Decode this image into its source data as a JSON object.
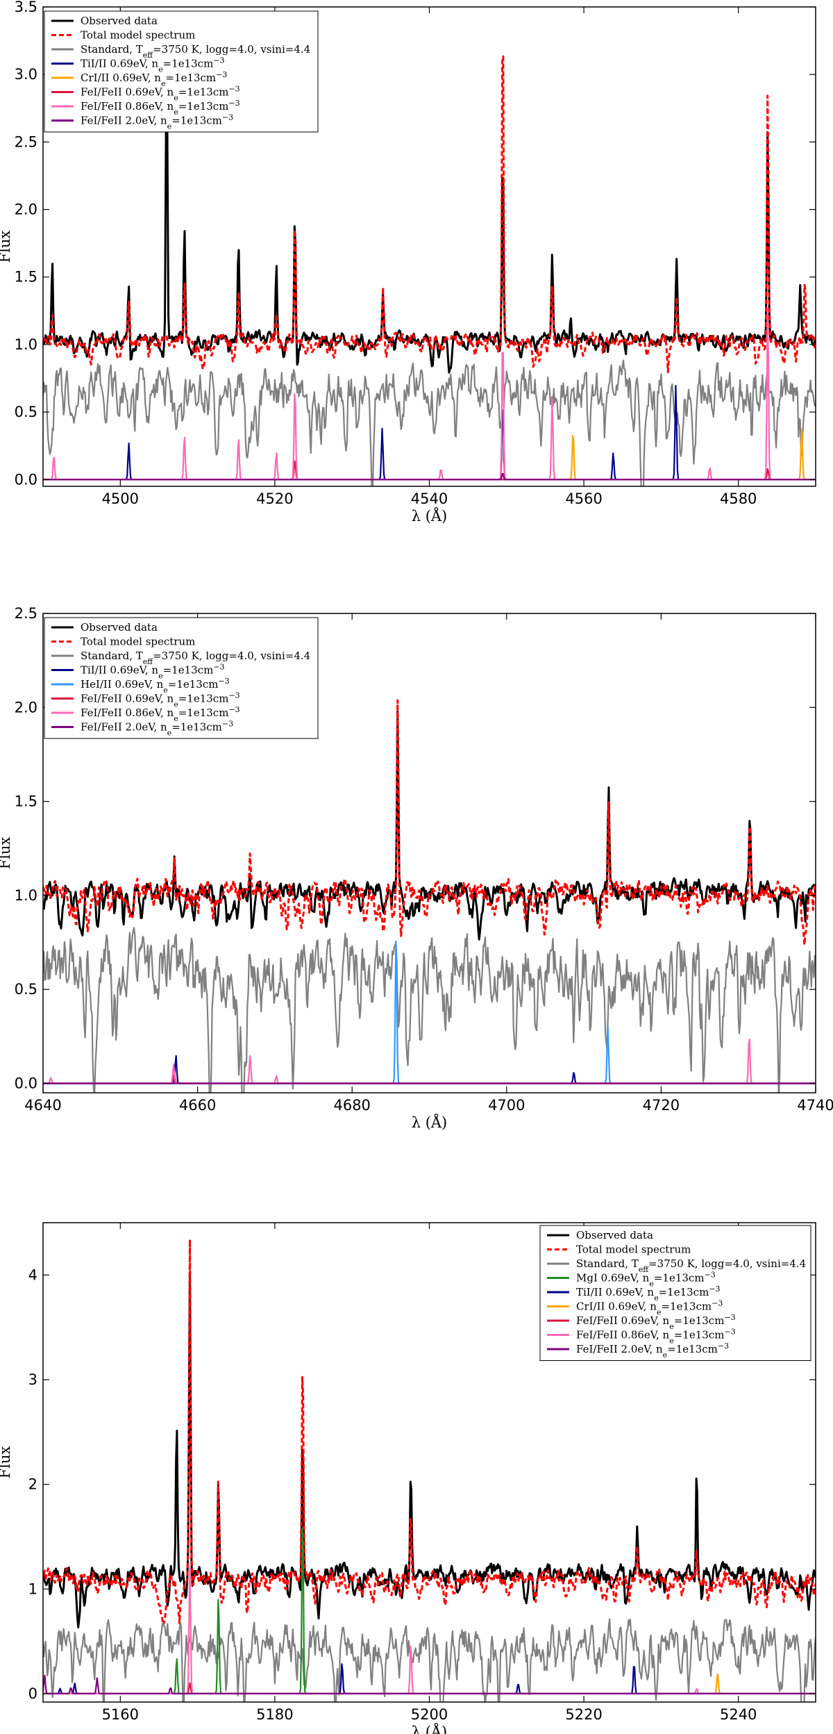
{
  "chart_data": [
    {
      "type": "line",
      "xlabel": "λ (Å)",
      "ylabel": "Flux",
      "xlim": [
        4490,
        4590
      ],
      "ylim": [
        -0.05,
        3.5
      ],
      "xticks": [
        4500,
        4520,
        4540,
        4560,
        4580
      ],
      "yticks": [
        0.0,
        0.5,
        1.0,
        1.5,
        2.0,
        2.5,
        3.0,
        3.5
      ],
      "ytick_format": "1",
      "legend_position": "top-left",
      "series": [
        {
          "name": "Observed data",
          "color": "#000000",
          "style": "solid",
          "baseline": 1.05,
          "noise": 0.05,
          "peaks": [
            [
              4491.2,
              0.6
            ],
            [
              4501.1,
              0.5
            ],
            [
              4506.0,
              2.4
            ],
            [
              4508.3,
              0.9
            ],
            [
              4515.3,
              0.7
            ],
            [
              4520.2,
              0.6
            ],
            [
              4522.6,
              0.95
            ],
            [
              4534.0,
              0.45
            ],
            [
              4549.5,
              1.35
            ],
            [
              4555.9,
              0.6
            ],
            [
              4558.3,
              0.25
            ],
            [
              4572.0,
              0.55
            ],
            [
              4583.8,
              1.55
            ],
            [
              4588.0,
              0.35
            ]
          ]
        },
        {
          "name": "Total model spectrum",
          "color": "#ff0000",
          "style": "dashed",
          "baseline": 1.03,
          "noise": 0.05,
          "peaks": [
            [
              4491.2,
              0.2
            ],
            [
              4501.1,
              0.3
            ],
            [
              4508.3,
              0.45
            ],
            [
              4515.3,
              0.4
            ],
            [
              4520.2,
              0.25
            ],
            [
              4522.6,
              0.9
            ],
            [
              4534.0,
              0.45
            ],
            [
              4549.5,
              2.5
            ],
            [
              4555.9,
              0.4
            ],
            [
              4572.0,
              0.35
            ],
            [
              4583.8,
              1.85
            ],
            [
              4588.6,
              0.45
            ]
          ]
        },
        {
          "name": "Standard, Teff=3750 K, logg=4.0, vsini=4.4",
          "color": "#808080",
          "style": "solid",
          "baseline": 0.68,
          "noise": 0.17,
          "peaks": []
        },
        {
          "name": "TiI/II 0.69eV, ne=1e13cm⁻³",
          "color": "#00008b",
          "style": "solid",
          "baseline": 0,
          "peaks": [
            [
              4501.1,
              0.27
            ],
            [
              4533.9,
              0.38
            ],
            [
              4549.5,
              0.6
            ],
            [
              4563.8,
              0.2
            ],
            [
              4571.9,
              0.7
            ]
          ]
        },
        {
          "name": "CrI/II 0.69eV, ne=1e13cm⁻³",
          "color": "#ffa500",
          "style": "solid",
          "baseline": 0,
          "peaks": [
            [
              4558.6,
              0.36
            ],
            [
              4588.2,
              0.38
            ]
          ]
        },
        {
          "name": "FeI/FeII 0.69eV, ne=1e13cm⁻³",
          "color": "#dc143c",
          "style": "solid",
          "baseline": 0,
          "peaks": [
            [
              4522.6,
              0.15
            ],
            [
              4583.8,
              0.08
            ]
          ]
        },
        {
          "name": "FeI/FeII 0.86eV, ne=1e13cm⁻³",
          "color": "#ff69b4",
          "style": "solid",
          "baseline": 0,
          "peaks": [
            [
              4491.4,
              0.18
            ],
            [
              4508.3,
              0.33
            ],
            [
              4515.3,
              0.31
            ],
            [
              4520.2,
              0.2
            ],
            [
              4522.6,
              0.7
            ],
            [
              4541.5,
              0.08
            ],
            [
              4549.5,
              1.1
            ],
            [
              4555.9,
              0.6
            ],
            [
              4576.3,
              0.09
            ],
            [
              4583.8,
              1.3
            ]
          ]
        },
        {
          "name": "FeI/FeII 2.0eV, ne=1e13cm⁻³",
          "color": "#800080",
          "style": "solid",
          "baseline": 0,
          "peaks": [
            [
              4549.5,
              0.05
            ]
          ]
        }
      ],
      "legend": [
        {
          "label": "Observed data",
          "color": "#000000",
          "style": "solid"
        },
        {
          "label": "Total model spectrum",
          "color": "#ff0000",
          "style": "dashed"
        },
        {
          "label": "Standard, T",
          "sub": "eff",
          "tail": "=3750 K, logg=4.0, vsini=4.4",
          "color": "#808080",
          "style": "solid"
        },
        {
          "label": "TiI/II 0.69eV, n",
          "sub": "e",
          "tail": "=1e13cm",
          "sup": "−3",
          "color": "#00008b",
          "style": "solid"
        },
        {
          "label": "CrI/II 0.69eV, n",
          "sub": "e",
          "tail": "=1e13cm",
          "sup": "−3",
          "color": "#ffa500",
          "style": "solid"
        },
        {
          "label": "FeI/FeII 0.69eV, n",
          "sub": "e",
          "tail": "=1e13cm",
          "sup": "−3",
          "color": "#dc143c",
          "style": "solid"
        },
        {
          "label": "FeI/FeII 0.86eV, n",
          "sub": "e",
          "tail": "=1e13cm",
          "sup": "−3",
          "color": "#ff69b4",
          "style": "solid"
        },
        {
          "label": "FeI/FeII 2.0eV, n",
          "sub": "e",
          "tail": "=1e13cm",
          "sup": "−3",
          "color": "#800080",
          "style": "solid"
        }
      ]
    },
    {
      "type": "line",
      "xlabel": "λ (Å)",
      "ylabel": "Flux",
      "xlim": [
        4640,
        4740
      ],
      "ylim": [
        -0.05,
        2.5
      ],
      "xticks": [
        4640,
        4660,
        4680,
        4700,
        4720,
        4740
      ],
      "yticks": [
        0.0,
        0.5,
        1.0,
        1.5,
        2.0,
        2.5
      ],
      "ytick_format": "1",
      "legend_position": "top-left",
      "series": [
        {
          "name": "Observed data",
          "color": "#000000",
          "style": "solid",
          "baseline": 1.02,
          "noise": 0.06,
          "peaks": [
            [
              4657.0,
              0.2
            ],
            [
              4666.8,
              0.22
            ],
            [
              4685.9,
              0.95
            ],
            [
              4713.2,
              0.58
            ],
            [
              4731.5,
              0.38
            ]
          ]
        },
        {
          "name": "Total model spectrum",
          "color": "#ff0000",
          "style": "dashed",
          "baseline": 1.02,
          "noise": 0.06,
          "peaks": [
            [
              4657.0,
              0.25
            ],
            [
              4666.8,
              0.2
            ],
            [
              4685.9,
              1.02
            ],
            [
              4713.2,
              0.53
            ],
            [
              4731.5,
              0.42
            ]
          ]
        },
        {
          "name": "Standard, Teff=3750 K, logg=4.0, vsini=4.4",
          "color": "#808080",
          "style": "solid",
          "baseline": 0.62,
          "noise": 0.17,
          "peaks": []
        },
        {
          "name": "TiI/II 0.69eV, ne=1e13cm⁻³",
          "color": "#00008b",
          "style": "solid",
          "baseline": 0,
          "peaks": [
            [
              4657.2,
              0.15
            ],
            [
              4708.7,
              0.06
            ]
          ]
        },
        {
          "name": "HeI/II 0.69eV, ne=1e13cm⁻³",
          "color": "#3399ff",
          "style": "solid",
          "baseline": 0,
          "peaks": [
            [
              4685.7,
              0.8
            ],
            [
              4713.1,
              0.3
            ]
          ]
        },
        {
          "name": "FeI/FeII 0.69eV, ne=1e13cm⁻³",
          "color": "#dc143c",
          "style": "solid",
          "baseline": 0,
          "peaks": [
            [
              4657.0,
              0.05
            ]
          ]
        },
        {
          "name": "FeI/FeII 0.86eV, ne=1e13cm⁻³",
          "color": "#ff69b4",
          "style": "solid",
          "baseline": 0,
          "peaks": [
            [
              4641.0,
              0.03
            ],
            [
              4656.9,
              0.1
            ],
            [
              4666.8,
              0.15
            ],
            [
              4670.2,
              0.04
            ],
            [
              4731.4,
              0.26
            ]
          ]
        },
        {
          "name": "FeI/FeII 2.0eV, ne=1e13cm⁻³",
          "color": "#800080",
          "style": "solid",
          "baseline": 0,
          "peaks": []
        }
      ],
      "legend": [
        {
          "label": "Observed data",
          "color": "#000000",
          "style": "solid"
        },
        {
          "label": "Total model spectrum",
          "color": "#ff0000",
          "style": "dashed"
        },
        {
          "label": "Standard, T",
          "sub": "eff",
          "tail": "=3750 K, logg=4.0, vsini=4.4",
          "color": "#808080",
          "style": "solid"
        },
        {
          "label": "TiI/II 0.69eV, n",
          "sub": "e",
          "tail": "=1e13cm",
          "sup": "−3",
          "color": "#00008b",
          "style": "solid"
        },
        {
          "label": "HeI/II 0.69eV, n",
          "sub": "e",
          "tail": "=1e13cm",
          "sup": "−3",
          "color": "#3399ff",
          "style": "solid"
        },
        {
          "label": "FeI/FeII 0.69eV, n",
          "sub": "e",
          "tail": "=1e13cm",
          "sup": "−3",
          "color": "#dc143c",
          "style": "solid"
        },
        {
          "label": "FeI/FeII 0.86eV, n",
          "sub": "e",
          "tail": "=1e13cm",
          "sup": "−3",
          "color": "#ff69b4",
          "style": "solid"
        },
        {
          "label": "FeI/FeII 2.0eV, n",
          "sub": "e",
          "tail": "=1e13cm",
          "sup": "−3",
          "color": "#800080",
          "style": "solid"
        }
      ]
    },
    {
      "type": "line",
      "xlabel": "λ (Å)",
      "ylabel": "Flux",
      "xlim": [
        5150,
        5250
      ],
      "ylim": [
        -0.08,
        4.5
      ],
      "xticks": [
        5160,
        5180,
        5200,
        5220,
        5240
      ],
      "yticks": [
        0,
        1,
        2,
        3,
        4
      ],
      "ytick_format": "0",
      "legend_position": "top-right",
      "series": [
        {
          "name": "Observed data",
          "color": "#000000",
          "style": "solid",
          "baseline": 1.15,
          "noise": 0.09,
          "peaks": [
            [
              5167.3,
              1.4
            ],
            [
              5169.0,
              2.9
            ],
            [
              5172.7,
              1.1
            ],
            [
              5183.6,
              1.5
            ],
            [
              5197.6,
              1.0
            ],
            [
              5226.9,
              0.5
            ],
            [
              5234.6,
              1.05
            ]
          ]
        },
        {
          "name": "Total model spectrum",
          "color": "#ff0000",
          "style": "dashed",
          "baseline": 1.1,
          "noise": 0.09,
          "peaks": [
            [
              5169.0,
              3.2
            ],
            [
              5172.7,
              1.1
            ],
            [
              5183.6,
              2.1
            ],
            [
              5197.6,
              0.65
            ],
            [
              5226.9,
              0.3
            ],
            [
              5234.6,
              0.25
            ]
          ]
        },
        {
          "name": "Standard, Teff=3750 K, logg=4.0, vsini=4.4",
          "color": "#808080",
          "style": "solid",
          "baseline": 0.5,
          "noise": 0.2,
          "peaks": []
        },
        {
          "name": "MgI 0.69eV, ne=1e13cm⁻³",
          "color": "#228b22",
          "style": "solid",
          "baseline": 0,
          "peaks": [
            [
              5167.3,
              0.35
            ],
            [
              5172.7,
              0.95
            ],
            [
              5183.6,
              1.75
            ]
          ]
        },
        {
          "name": "TiI/II 0.69eV, ne=1e13cm⁻³",
          "color": "#00008b",
          "style": "solid",
          "baseline": 0,
          "peaks": [
            [
              5152.2,
              0.05
            ],
            [
              5154.1,
              0.1
            ],
            [
              5188.7,
              0.3
            ],
            [
              5211.5,
              0.1
            ],
            [
              5226.5,
              0.3
            ]
          ]
        },
        {
          "name": "CrI/II 0.69eV, ne=1e13cm⁻³",
          "color": "#ffa500",
          "style": "solid",
          "baseline": 0,
          "peaks": [
            [
              5237.3,
              0.2
            ]
          ]
        },
        {
          "name": "FeI/FeII 0.69eV, ne=1e13cm⁻³",
          "color": "#dc143c",
          "style": "solid",
          "baseline": 0,
          "peaks": [
            [
              5169.0,
              0.1
            ]
          ]
        },
        {
          "name": "FeI/FeII 0.86eV, ne=1e13cm⁻³",
          "color": "#ff69b4",
          "style": "solid",
          "baseline": 0,
          "peaks": [
            [
              5169.0,
              1.2
            ],
            [
              5197.6,
              0.5
            ],
            [
              5234.6,
              0.05
            ]
          ]
        },
        {
          "name": "FeI/FeII 2.0eV, ne=1e13cm⁻³",
          "color": "#800080",
          "style": "solid",
          "baseline": 0,
          "peaks": [
            [
              5150.2,
              0.18
            ],
            [
              5153.6,
              0.06
            ],
            [
              5157.0,
              0.15
            ],
            [
              5166.5,
              0.06
            ]
          ]
        }
      ],
      "legend": [
        {
          "label": "Observed data",
          "color": "#000000",
          "style": "solid"
        },
        {
          "label": "Total model spectrum",
          "color": "#ff0000",
          "style": "dashed"
        },
        {
          "label": "Standard, T",
          "sub": "eff",
          "tail": "=3750 K, logg=4.0, vsini=4.4",
          "color": "#808080",
          "style": "solid"
        },
        {
          "label": "MgI 0.69eV, n",
          "sub": "e",
          "tail": "=1e13cm",
          "sup": "−3",
          "color": "#228b22",
          "style": "solid"
        },
        {
          "label": "TiI/II 0.69eV, n",
          "sub": "e",
          "tail": "=1e13cm",
          "sup": "−3",
          "color": "#00008b",
          "style": "solid"
        },
        {
          "label": "CrI/II 0.69eV, n",
          "sub": "e",
          "tail": "=1e13cm",
          "sup": "−3",
          "color": "#ffa500",
          "style": "solid"
        },
        {
          "label": "FeI/FeII 0.69eV, n",
          "sub": "e",
          "tail": "=1e13cm",
          "sup": "−3",
          "color": "#dc143c",
          "style": "solid"
        },
        {
          "label": "FeI/FeII 0.86eV, n",
          "sub": "e",
          "tail": "=1e13cm",
          "sup": "−3",
          "color": "#ff69b4",
          "style": "solid"
        },
        {
          "label": "FeI/FeII 2.0eV, n",
          "sub": "e",
          "tail": "=1e13cm",
          "sup": "−3",
          "color": "#800080",
          "style": "solid"
        }
      ]
    }
  ]
}
